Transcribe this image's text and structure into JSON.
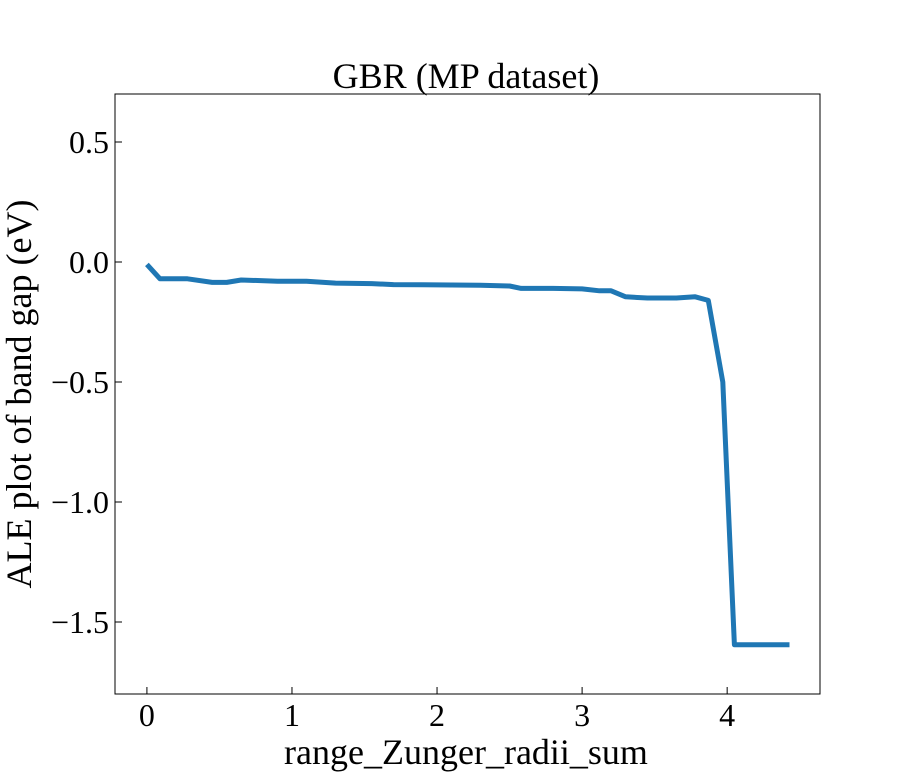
{
  "chart_data": {
    "type": "line",
    "title": "GBR (MP dataset)",
    "xlabel": "range_Zunger_radii_sum",
    "ylabel": "ALE plot of band gap (eV)",
    "xlim": [
      -0.22,
      4.64
    ],
    "ylim": [
      -1.8,
      0.7
    ],
    "xticks": [
      0,
      1,
      2,
      3,
      4
    ],
    "xtick_labels": [
      "0",
      "1",
      "2",
      "3",
      "4"
    ],
    "yticks": [
      0.5,
      0.0,
      -0.5,
      -1.0,
      -1.5
    ],
    "ytick_labels": [
      "0.5",
      "0.0",
      "−0.5",
      "−1.0",
      "−1.5"
    ],
    "grid": false,
    "colors": {
      "line": "#1f77b4"
    },
    "series": [
      {
        "x": [
          0.0,
          0.09,
          0.28,
          0.45,
          0.55,
          0.65,
          0.9,
          1.1,
          1.3,
          1.55,
          1.7,
          1.9,
          2.1,
          2.3,
          2.5,
          2.58,
          2.8,
          3.0,
          3.12,
          3.2,
          3.3,
          3.45,
          3.65,
          3.78,
          3.87,
          3.97,
          4.05,
          4.43
        ],
        "y": [
          -0.01,
          -0.07,
          -0.07,
          -0.085,
          -0.085,
          -0.075,
          -0.08,
          -0.08,
          -0.088,
          -0.09,
          -0.094,
          -0.095,
          -0.096,
          -0.097,
          -0.1,
          -0.11,
          -0.11,
          -0.112,
          -0.12,
          -0.12,
          -0.145,
          -0.15,
          -0.15,
          -0.145,
          -0.16,
          -0.5,
          -1.595,
          -1.595
        ]
      }
    ]
  }
}
